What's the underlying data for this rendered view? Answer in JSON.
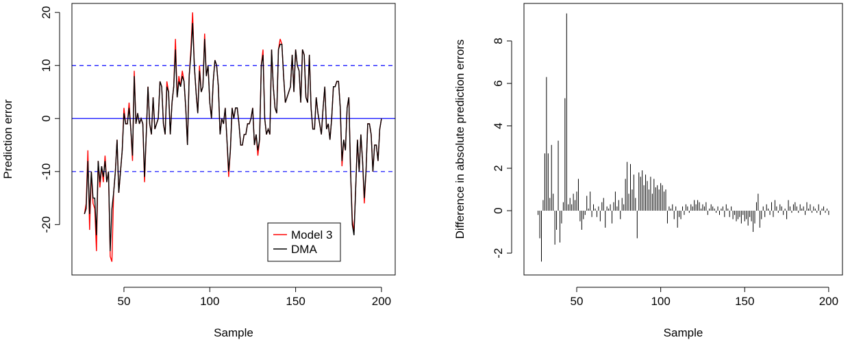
{
  "chart_data": [
    {
      "type": "line",
      "xlabel": "Sample",
      "ylabel": "Prediction error",
      "xlim": [
        19.7,
        208
      ],
      "ylim": [
        -29.5,
        21.7
      ],
      "xticks": [
        50,
        100,
        150,
        200
      ],
      "yticks": [
        -20,
        -10,
        0,
        10,
        20
      ],
      "hlines": [
        {
          "value": 0,
          "color": "blue",
          "style": "solid"
        },
        {
          "value": 10,
          "color": "blue",
          "style": "dashed"
        },
        {
          "value": -10,
          "color": "blue",
          "style": "dashed"
        }
      ],
      "legend": "bottomright",
      "x": [
        27,
        28,
        29,
        30,
        31,
        32,
        33,
        34,
        35,
        36,
        37,
        38,
        39,
        40,
        41,
        42,
        43,
        44,
        45,
        46,
        47,
        48,
        49,
        50,
        51,
        52,
        53,
        54,
        55,
        56,
        57,
        58,
        59,
        60,
        61,
        62,
        63,
        64,
        65,
        66,
        67,
        68,
        69,
        70,
        71,
        72,
        73,
        74,
        75,
        76,
        77,
        78,
        79,
        80,
        81,
        82,
        83,
        84,
        85,
        86,
        87,
        88,
        89,
        90,
        91,
        92,
        93,
        94,
        95,
        96,
        97,
        98,
        99,
        100,
        101,
        102,
        103,
        104,
        105,
        106,
        107,
        108,
        109,
        110,
        111,
        112,
        113,
        114,
        115,
        116,
        117,
        118,
        119,
        120,
        121,
        122,
        123,
        124,
        125,
        126,
        127,
        128,
        129,
        130,
        131,
        132,
        133,
        134,
        135,
        136,
        137,
        138,
        139,
        140,
        141,
        142,
        143,
        144,
        145,
        146,
        147,
        148,
        149,
        150,
        151,
        152,
        153,
        154,
        155,
        156,
        157,
        158,
        159,
        160,
        161,
        162,
        163,
        164,
        165,
        166,
        167,
        168,
        169,
        170,
        171,
        172,
        173,
        174,
        175,
        176,
        177,
        178,
        179,
        180,
        181,
        182,
        183,
        184,
        185,
        186,
        187,
        188,
        189,
        190,
        191,
        192,
        193,
        194,
        195,
        196,
        197,
        198,
        199,
        200
      ],
      "series": [
        {
          "name": "Model 3",
          "color": "#ff0000",
          "values": [
            -18,
            -16,
            -6,
            -21,
            -10,
            -16,
            -17,
            -25,
            -8,
            -13,
            -9,
            -12,
            -7,
            -12,
            -10,
            -26,
            -27,
            -14,
            -10,
            -4,
            -14,
            -10,
            -6,
            2,
            -1,
            -1,
            3,
            -2,
            -8,
            9,
            -1,
            1,
            -1,
            0,
            -1,
            -12,
            -3,
            6,
            -1,
            -3,
            4,
            -2,
            -1,
            0,
            7,
            6,
            -1,
            -3,
            7,
            5,
            -3,
            3,
            6,
            15,
            4,
            8,
            6,
            9,
            7,
            2,
            -5,
            8,
            13,
            20,
            10,
            5,
            1,
            10,
            5,
            6,
            16,
            8,
            10,
            3,
            0,
            7,
            11,
            10,
            6,
            -3,
            0,
            -1,
            2,
            -4,
            -11,
            -6,
            2,
            0,
            2,
            2,
            -1,
            -5,
            -5,
            -3,
            -3,
            -1,
            -1,
            0,
            2,
            -5,
            -3,
            -7,
            -4,
            10,
            13,
            0,
            -3,
            -2,
            -3,
            13,
            6,
            2,
            1,
            13,
            15,
            14,
            8,
            3,
            4,
            5,
            6,
            12,
            5,
            13,
            10,
            9,
            3,
            13,
            12,
            4,
            3,
            12,
            2,
            -2,
            -2,
            4,
            1,
            -1,
            -3,
            2,
            6,
            -2,
            -1,
            -4,
            0,
            6,
            6,
            7,
            7,
            2,
            -9,
            -4,
            -6,
            2,
            4,
            -10,
            -19,
            -21.5,
            -13,
            -4,
            -10,
            -3,
            -8,
            -16,
            -10,
            -1,
            -1,
            -3,
            -10,
            -5,
            -5,
            -8,
            -2,
            0
          ]
        },
        {
          "name": "DMA",
          "color": "#000000",
          "values": [
            -18,
            -17,
            -8,
            -18,
            -10,
            -15,
            -15,
            -22,
            -8,
            -12,
            -9,
            -11,
            -8,
            -12,
            -10,
            -25,
            -17,
            -14,
            -10,
            -4,
            -14,
            -10,
            -6,
            1,
            -1,
            -1,
            2,
            -2,
            -7,
            8,
            -1,
            1,
            -1,
            0,
            -1,
            -11,
            -3,
            6,
            -1,
            -3,
            4,
            -2,
            -1,
            0,
            7,
            6,
            -1,
            -3,
            6,
            5,
            -3,
            3,
            6,
            13,
            4,
            7,
            6,
            8,
            7,
            2,
            -5,
            8,
            12,
            18,
            10,
            5,
            1,
            9,
            5,
            6,
            15,
            8,
            10,
            3,
            0,
            7,
            11,
            10,
            6,
            -3,
            0,
            -1,
            2,
            -4,
            -10,
            -6,
            2,
            0,
            2,
            2,
            -1,
            -5,
            -5,
            -3,
            -3,
            -1,
            -1,
            0,
            2,
            -5,
            -3,
            -6,
            -4,
            10,
            12,
            0,
            -3,
            -2,
            -3,
            13,
            6,
            2,
            1,
            13,
            14,
            14,
            8,
            3,
            4,
            5,
            6,
            12,
            5,
            13,
            10,
            9,
            3,
            13,
            12,
            4,
            3,
            12,
            2,
            -2,
            -2,
            4,
            1,
            -1,
            -3,
            2,
            6,
            -2,
            -1,
            -4,
            0,
            6,
            6,
            7,
            7,
            2,
            -8,
            -4,
            -6,
            2,
            4,
            -10,
            -20,
            -22,
            -13,
            -4,
            -10,
            -3,
            -8,
            -15,
            -10,
            -1,
            -1,
            -3,
            -10,
            -5,
            -5,
            -8,
            -2,
            0
          ]
        }
      ]
    },
    {
      "type": "needle",
      "xlabel": "Sample",
      "ylabel": "Difference in absolute prediction errors",
      "xlim": [
        18.6,
        208.2
      ],
      "ylim": [
        -3.03,
        9.77
      ],
      "xticks": [
        50,
        100,
        150,
        200
      ],
      "yticks": [
        -2,
        0,
        2,
        4,
        6,
        8
      ],
      "color": "#000000",
      "x": [
        27,
        28,
        29,
        30,
        31,
        32,
        33,
        34,
        35,
        36,
        37,
        38,
        39,
        40,
        41,
        42,
        43,
        44,
        45,
        46,
        47,
        48,
        49,
        50,
        51,
        52,
        53,
        54,
        55,
        56,
        57,
        58,
        59,
        60,
        61,
        62,
        63,
        64,
        65,
        66,
        67,
        68,
        69,
        70,
        71,
        72,
        73,
        74,
        75,
        76,
        77,
        78,
        79,
        80,
        81,
        82,
        83,
        84,
        85,
        86,
        87,
        88,
        89,
        90,
        91,
        92,
        93,
        94,
        95,
        96,
        97,
        98,
        99,
        100,
        101,
        102,
        103,
        104,
        105,
        106,
        107,
        108,
        109,
        110,
        111,
        112,
        113,
        114,
        115,
        116,
        117,
        118,
        119,
        120,
        121,
        122,
        123,
        124,
        125,
        126,
        127,
        128,
        129,
        130,
        131,
        132,
        133,
        134,
        135,
        136,
        137,
        138,
        139,
        140,
        141,
        142,
        143,
        144,
        145,
        146,
        147,
        148,
        149,
        150,
        151,
        152,
        153,
        154,
        155,
        156,
        157,
        158,
        159,
        160,
        161,
        162,
        163,
        164,
        165,
        166,
        167,
        168,
        169,
        170,
        171,
        172,
        173,
        174,
        175,
        176,
        177,
        178,
        179,
        180,
        181,
        182,
        183,
        184,
        185,
        186,
        187,
        188,
        189,
        190,
        191,
        192,
        193,
        194,
        195,
        196,
        197,
        198,
        199,
        200
      ],
      "values": [
        -0.2,
        -1.3,
        -2.4,
        0.5,
        2.7,
        6.3,
        2.7,
        0.6,
        3.1,
        0.8,
        -1.6,
        -0.9,
        3.3,
        -1.5,
        -0.6,
        0.4,
        5.3,
        9.3,
        0.3,
        0.6,
        0.3,
        0.8,
        0.5,
        0.9,
        1.5,
        -0.5,
        -0.9,
        -0.4,
        -0.2,
        0.7,
        0.1,
        0.9,
        -0.3,
        0.3,
        0.1,
        -0.3,
        0.2,
        -0.5,
        0.4,
        0.6,
        -0.8,
        0.2,
        0.1,
        0.3,
        -0.6,
        0.4,
        0.9,
        0.2,
        0.5,
        -0.4,
        0.6,
        0.3,
        1.5,
        2.3,
        0.8,
        2.2,
        1.0,
        1.7,
        0.6,
        -1.3,
        1.8,
        1.6,
        1.9,
        1.2,
        1.7,
        1.4,
        1.0,
        1.6,
        0.8,
        1.5,
        1.1,
        1.2,
        1.0,
        1.3,
        1.2,
        0.9,
        1.0,
        -0.6,
        0.2,
        0.1,
        0.3,
        -0.4,
        0.2,
        -0.8,
        -0.3,
        -0.4,
        0.2,
        -0.2,
        0.3,
        0.2,
        -0.1,
        0.3,
        0.2,
        0.5,
        0.3,
        0.5,
        0.4,
        0.1,
        0.3,
        0.2,
        0.4,
        -0.2,
        0.1,
        0.3,
        0.2,
        0.1,
        -0.1,
        0.2,
        -0.2,
        0.1,
        0.2,
        -0.3,
        0.3,
        0.1,
        -0.3,
        0.2,
        -0.4,
        -0.2,
        -0.5,
        -0.4,
        -0.3,
        -0.6,
        -0.2,
        -0.5,
        -0.4,
        -0.7,
        -0.3,
        -0.5,
        -1.0,
        -0.6,
        0.4,
        0.8,
        -0.8,
        -0.4,
        0.2,
        -0.3,
        0.3,
        0.1,
        -0.2,
        0.4,
        -0.3,
        0.5,
        0.2,
        -0.1,
        0.3,
        0.2,
        -0.2,
        0.1,
        -0.4,
        0.5,
        0.2,
        -0.1,
        0.3,
        0.4,
        0.2,
        -0.1,
        0.3,
        0.1,
        0.2,
        -0.2,
        0.4,
        0.1,
        0.3,
        -0.1,
        0.2,
        0.1,
        -0.1,
        0.3,
        -0.2,
        0.1,
        0.2,
        -0.1,
        0.1,
        -0.2
      ]
    }
  ]
}
